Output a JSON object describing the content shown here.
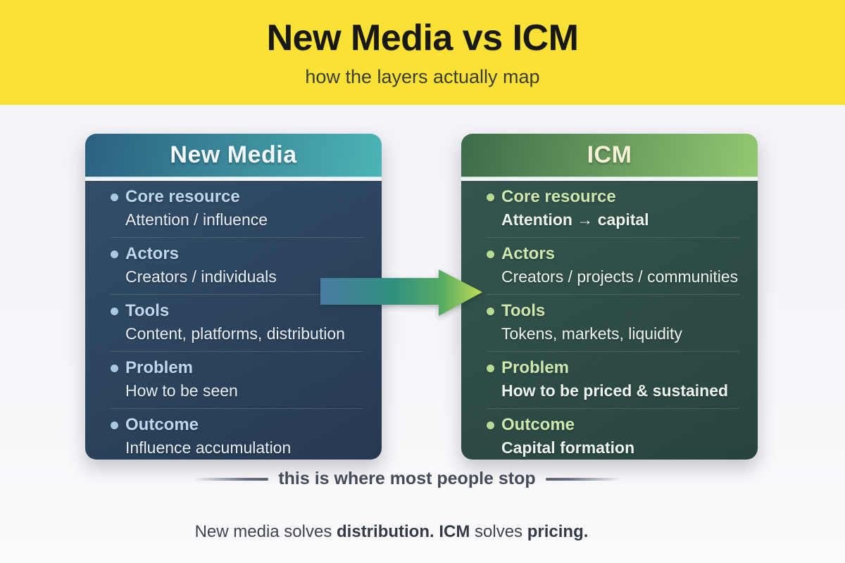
{
  "header": {
    "title": "New Media vs ICM",
    "subtitle": "how the layers actually map",
    "band_color": "#F9E136"
  },
  "cards": [
    {
      "id": "new-media",
      "title": "New Media",
      "theme": {
        "header_gradient_start": "#2a607f",
        "header_gradient_end": "#4cb4b6",
        "body_gradient_start": "#2d4a66",
        "body_gradient_end": "#21354d",
        "title_color": "#f2f8fb",
        "label_color": "#bdd9ec",
        "value_color": "#e8eff6",
        "bullet_color": "#a9c9e4"
      },
      "items": [
        {
          "label": "Core resource",
          "value": "Attention / influence",
          "value_bold": false
        },
        {
          "label": "Actors",
          "value": "Creators / individuals",
          "value_bold": false
        },
        {
          "label": "Tools",
          "value": "Content, platforms, distribution",
          "value_bold": false
        },
        {
          "label": "Problem",
          "value": "How to be seen",
          "value_bold": false
        },
        {
          "label": "Outcome",
          "value": "Influence accumulation",
          "value_bold": false
        }
      ]
    },
    {
      "id": "icm",
      "title": "ICM",
      "theme": {
        "header_gradient_start": "#3c6b49",
        "header_gradient_end": "#93c871",
        "body_gradient_start": "#2f524a",
        "body_gradient_end": "#233f39",
        "title_color": "#f5efd6",
        "label_color": "#cfe9ae",
        "value_color": "#f0f5ee",
        "bullet_color": "#b8dc94"
      },
      "items": [
        {
          "label": "Core resource",
          "value": "Attention → capital",
          "value_bold": true
        },
        {
          "label": "Actors",
          "value": "Creators / projects / communities",
          "value_bold": false
        },
        {
          "label": "Tools",
          "value": "Tokens, markets, liquidity",
          "value_bold": false
        },
        {
          "label": "Problem",
          "value": "How to be priced & sustained",
          "value_bold": true
        },
        {
          "label": "Outcome",
          "value": "Capital formation",
          "value_bold": true
        }
      ]
    }
  ],
  "arrow": {
    "meaning": "new-media-to-icm",
    "gradient": [
      "#4a7ca3",
      "#31917f",
      "#57ab63",
      "#c2dd55"
    ]
  },
  "divider": {
    "text": "this is where most people stop"
  },
  "footer": {
    "segments": [
      {
        "text": "New media solves ",
        "bold": false
      },
      {
        "text": "distribution.",
        "bold": true
      },
      {
        "text": " ",
        "bold": false
      },
      {
        "text": "ICM",
        "bold": true
      },
      {
        "text": " solves ",
        "bold": false
      },
      {
        "text": "pricing.",
        "bold": true
      }
    ]
  }
}
